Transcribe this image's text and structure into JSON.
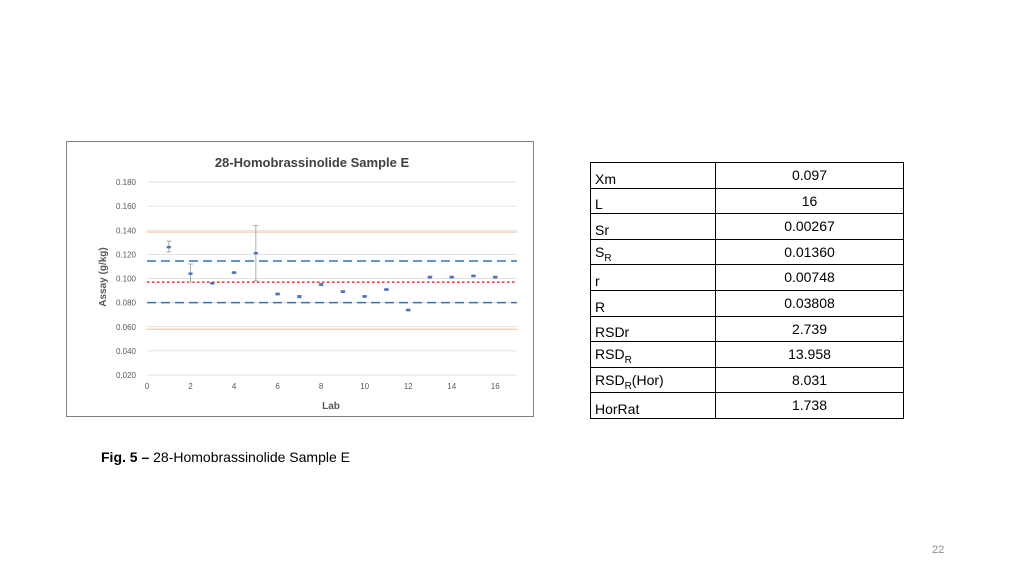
{
  "chart_data": {
    "type": "scatter",
    "title": "28-Homobrassinolide Sample E",
    "xlabel": "Lab",
    "ylabel": "Assay (g/kg)",
    "xlim": [
      0,
      17
    ],
    "ylim": [
      0.02,
      0.18
    ],
    "x_ticks": [
      0,
      2,
      4,
      6,
      8,
      10,
      12,
      14,
      16
    ],
    "y_ticks": [
      0.02,
      0.04,
      0.06,
      0.08,
      0.1,
      0.12,
      0.14,
      0.16,
      0.18
    ],
    "y_tick_labels": [
      "0.020",
      "0.040",
      "0.060",
      "0.080",
      "0.100",
      "0.120",
      "0.140",
      "0.160",
      "0.180"
    ],
    "grid": "horizontal",
    "series": [
      {
        "points": [
          {
            "x": 1,
            "y": 0.126,
            "lo": 0.122,
            "hi": 0.131
          },
          {
            "x": 2,
            "y": 0.104,
            "lo": 0.097,
            "hi": 0.112
          },
          {
            "x": 3,
            "y": 0.096,
            "lo": 0.096,
            "hi": 0.096
          },
          {
            "x": 4,
            "y": 0.105,
            "lo": 0.104,
            "hi": 0.105
          },
          {
            "x": 5,
            "y": 0.121,
            "lo": 0.098,
            "hi": 0.144
          },
          {
            "x": 6,
            "y": 0.087,
            "lo": 0.087,
            "hi": 0.088
          },
          {
            "x": 7,
            "y": 0.085,
            "lo": 0.084,
            "hi": 0.086
          },
          {
            "x": 8,
            "y": 0.095,
            "lo": 0.094,
            "hi": 0.096
          },
          {
            "x": 9,
            "y": 0.089,
            "lo": 0.089,
            "hi": 0.09
          },
          {
            "x": 10,
            "y": 0.085,
            "lo": 0.085,
            "hi": 0.086
          },
          {
            "x": 11,
            "y": 0.091,
            "lo": 0.09,
            "hi": 0.091
          },
          {
            "x": 12,
            "y": 0.074,
            "lo": 0.073,
            "hi": 0.074
          },
          {
            "x": 13,
            "y": 0.101,
            "lo": 0.101,
            "hi": 0.102
          },
          {
            "x": 14,
            "y": 0.101,
            "lo": 0.101,
            "hi": 0.102
          },
          {
            "x": 15,
            "y": 0.102,
            "lo": 0.102,
            "hi": 0.103
          },
          {
            "x": 16,
            "y": 0.101,
            "lo": 0.101,
            "hi": 0.102
          }
        ]
      }
    ],
    "reference_lines": [
      {
        "y": 0.097,
        "style": "dotted",
        "color": "#ff0000"
      },
      {
        "y": 0.1145,
        "style": "dashed",
        "color": "#2e75b6"
      },
      {
        "y": 0.08,
        "style": "dashed",
        "color": "#2e75b6"
      },
      {
        "y": 0.1385,
        "style": "solid",
        "color": "#f4b183"
      },
      {
        "y": 0.058,
        "style": "solid",
        "color": "#f4b183"
      }
    ],
    "colors": {
      "marker": "#4472c4",
      "errorbar": "#a6a6a6",
      "grid": "#d9d9d9",
      "title": "#404040",
      "axis_text": "#595959"
    }
  },
  "stats_table": [
    {
      "label_main": "Xm",
      "label_sub": "",
      "label_tail": "",
      "value": "0.097"
    },
    {
      "label_main": "L",
      "label_sub": "",
      "label_tail": "",
      "value": "16"
    },
    {
      "label_main": "Sr",
      "label_sub": "",
      "label_tail": "",
      "value": "0.00267"
    },
    {
      "label_main": "S",
      "label_sub": "R",
      "label_tail": "",
      "value": "0.01360"
    },
    {
      "label_main": "r",
      "label_sub": "",
      "label_tail": "",
      "value": "0.00748"
    },
    {
      "label_main": "R",
      "label_sub": "",
      "label_tail": "",
      "value": "0.03808"
    },
    {
      "label_main": "RSDr",
      "label_sub": "",
      "label_tail": "",
      "value": "2.739"
    },
    {
      "label_main": "RSD",
      "label_sub": "R",
      "label_tail": "",
      "value": "13.958"
    },
    {
      "label_main": "RSD",
      "label_sub": "R",
      "label_tail": "(Hor)",
      "value": "8.031"
    },
    {
      "label_main": "HorRat",
      "label_sub": "",
      "label_tail": "",
      "value": "1.738"
    }
  ],
  "caption": {
    "prefix": "Fig. 5 –",
    "text": " 28-Homobrassinolide Sample E"
  },
  "page_number": "22"
}
